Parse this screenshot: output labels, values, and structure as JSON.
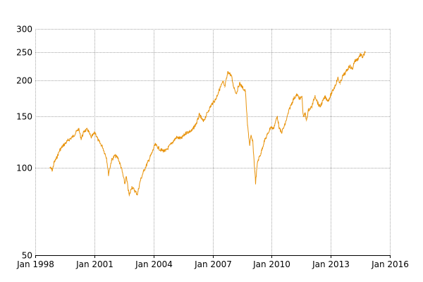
{
  "chart_data": {
    "type": "line",
    "title": "",
    "xlabel": "",
    "ylabel": "",
    "y_scale": "log",
    "ylim": [
      50,
      300
    ],
    "xlim": [
      "1998-01-01",
      "2016-01-01"
    ],
    "grid": true,
    "legend": "none",
    "x_ticks": [
      "Jan 1998",
      "Jan 2001",
      "Jan 2004",
      "Jan 2007",
      "Jan 2010",
      "Jan 2013",
      "Jan 2016"
    ],
    "y_ticks": [
      50,
      100,
      150,
      200,
      250,
      300
    ],
    "series": [
      {
        "color": "#e8930c",
        "points": [
          [
            "1998-10-01",
            100
          ],
          [
            "1998-11-15",
            98
          ],
          [
            "1998-12-15",
            104
          ],
          [
            "1999-02-01",
            108
          ],
          [
            "1999-04-01",
            115
          ],
          [
            "1999-06-01",
            119
          ],
          [
            "1999-09-01",
            124
          ],
          [
            "1999-12-01",
            128
          ],
          [
            "2000-03-15",
            136
          ],
          [
            "2000-05-01",
            126
          ],
          [
            "2000-07-01",
            134
          ],
          [
            "2000-09-01",
            135
          ],
          [
            "2000-11-01",
            127
          ],
          [
            "2001-01-15",
            132
          ],
          [
            "2001-03-15",
            124
          ],
          [
            "2001-06-01",
            118
          ],
          [
            "2001-08-15",
            108
          ],
          [
            "2001-09-20",
            95
          ],
          [
            "2001-11-15",
            106
          ],
          [
            "2002-01-15",
            110
          ],
          [
            "2002-03-15",
            108
          ],
          [
            "2002-05-15",
            100
          ],
          [
            "2002-07-20",
            88
          ],
          [
            "2002-08-15",
            93
          ],
          [
            "2002-10-10",
            80
          ],
          [
            "2002-11-25",
            86
          ],
          [
            "2003-03-10",
            81
          ],
          [
            "2003-05-01",
            90
          ],
          [
            "2003-07-01",
            97
          ],
          [
            "2003-09-15",
            104
          ],
          [
            "2003-12-01",
            112
          ],
          [
            "2004-02-01",
            120
          ],
          [
            "2004-05-15",
            115
          ],
          [
            "2004-08-15",
            114
          ],
          [
            "2004-12-15",
            122
          ],
          [
            "2005-03-01",
            127
          ],
          [
            "2005-06-01",
            126
          ],
          [
            "2005-09-01",
            132
          ],
          [
            "2005-12-15",
            134
          ],
          [
            "2006-03-15",
            143
          ],
          [
            "2006-05-01",
            152
          ],
          [
            "2006-07-15",
            144
          ],
          [
            "2006-10-15",
            157
          ],
          [
            "2006-12-15",
            165
          ],
          [
            "2007-03-01",
            172
          ],
          [
            "2007-04-15",
            181
          ],
          [
            "2007-06-01",
            190
          ],
          [
            "2007-07-15",
            197
          ],
          [
            "2007-08-15",
            189
          ],
          [
            "2007-10-15",
            214
          ],
          [
            "2007-12-15",
            207
          ],
          [
            "2008-01-20",
            192
          ],
          [
            "2008-03-15",
            180
          ],
          [
            "2008-05-15",
            195
          ],
          [
            "2008-07-15",
            188
          ],
          [
            "2008-09-01",
            183
          ],
          [
            "2008-10-10",
            140
          ],
          [
            "2008-11-20",
            120
          ],
          [
            "2008-12-15",
            128
          ],
          [
            "2009-01-15",
            123
          ],
          [
            "2009-03-09",
            89
          ],
          [
            "2009-04-15",
            105
          ],
          [
            "2009-06-15",
            112
          ],
          [
            "2009-08-15",
            123
          ],
          [
            "2009-10-15",
            130
          ],
          [
            "2009-12-15",
            138
          ],
          [
            "2010-02-01",
            136
          ],
          [
            "2010-04-15",
            150
          ],
          [
            "2010-05-25",
            136
          ],
          [
            "2010-07-01",
            132
          ],
          [
            "2010-09-01",
            140
          ],
          [
            "2010-12-01",
            160
          ],
          [
            "2011-02-15",
            173
          ],
          [
            "2011-04-15",
            178
          ],
          [
            "2011-06-15",
            172
          ],
          [
            "2011-07-15",
            176
          ],
          [
            "2011-08-10",
            150
          ],
          [
            "2011-09-15",
            153
          ],
          [
            "2011-10-05",
            145
          ],
          [
            "2011-11-15",
            158
          ],
          [
            "2012-01-15",
            162
          ],
          [
            "2012-03-15",
            177
          ],
          [
            "2012-05-15",
            165
          ],
          [
            "2012-06-15",
            162
          ],
          [
            "2012-09-15",
            175
          ],
          [
            "2012-11-15",
            170
          ],
          [
            "2013-01-15",
            180
          ],
          [
            "2013-03-15",
            190
          ],
          [
            "2013-05-15",
            203
          ],
          [
            "2013-06-25",
            194
          ],
          [
            "2013-08-01",
            205
          ],
          [
            "2013-10-01",
            212
          ],
          [
            "2013-12-15",
            224
          ],
          [
            "2014-02-05",
            218
          ],
          [
            "2014-03-15",
            232
          ],
          [
            "2014-05-15",
            236
          ],
          [
            "2014-07-01",
            245
          ],
          [
            "2014-08-15",
            240
          ],
          [
            "2014-10-01",
            249
          ]
        ]
      }
    ]
  }
}
